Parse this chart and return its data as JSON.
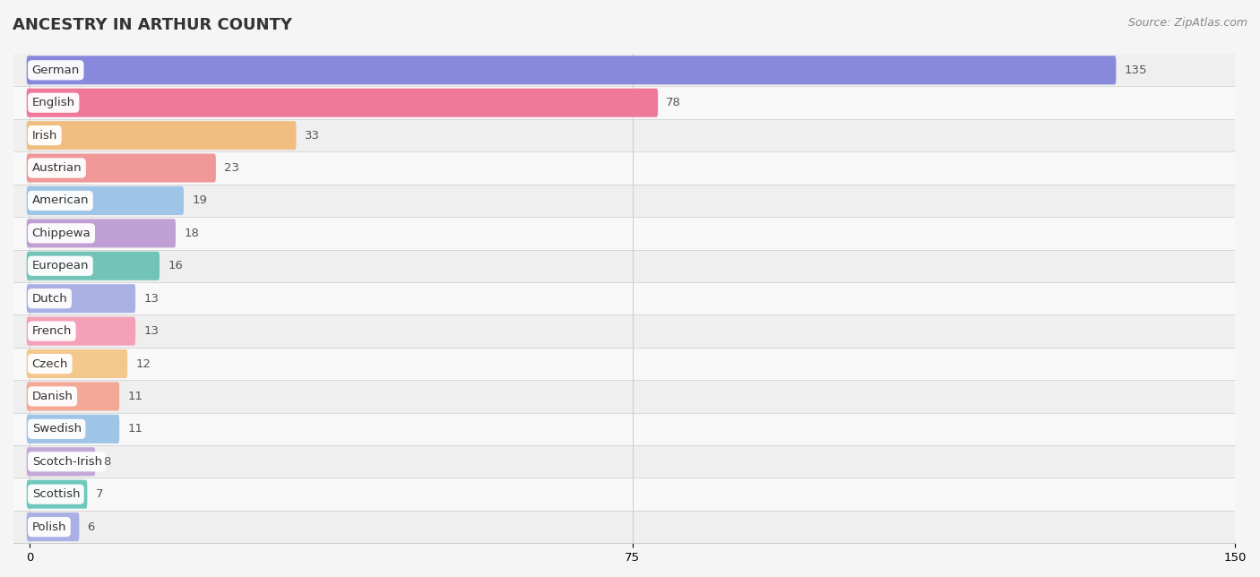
{
  "title": "ANCESTRY IN ARTHUR COUNTY",
  "source": "Source: ZipAtlas.com",
  "categories": [
    "German",
    "English",
    "Irish",
    "Austrian",
    "American",
    "Chippewa",
    "European",
    "Dutch",
    "French",
    "Czech",
    "Danish",
    "Swedish",
    "Scotch-Irish",
    "Scottish",
    "Polish"
  ],
  "values": [
    135,
    78,
    33,
    23,
    19,
    18,
    16,
    13,
    13,
    12,
    11,
    11,
    8,
    7,
    6
  ],
  "bar_colors": [
    "#8888dd",
    "#f07898",
    "#f0be80",
    "#f09898",
    "#9ec4e8",
    "#c0a0d4",
    "#72c4b8",
    "#aab0e4",
    "#f4a0b8",
    "#f4c88c",
    "#f4a898",
    "#9ec4e8",
    "#c4a8d8",
    "#6ec8bc",
    "#aab0e4"
  ],
  "row_bg_colors": [
    "#efefef",
    "#f8f8f8"
  ],
  "xlim": [
    -2,
    150
  ],
  "xticks": [
    0,
    75,
    150
  ],
  "title_fontsize": 13,
  "label_fontsize": 9.5,
  "value_fontsize": 9.5,
  "bar_height": 0.52,
  "background_color": "#f5f5f5"
}
